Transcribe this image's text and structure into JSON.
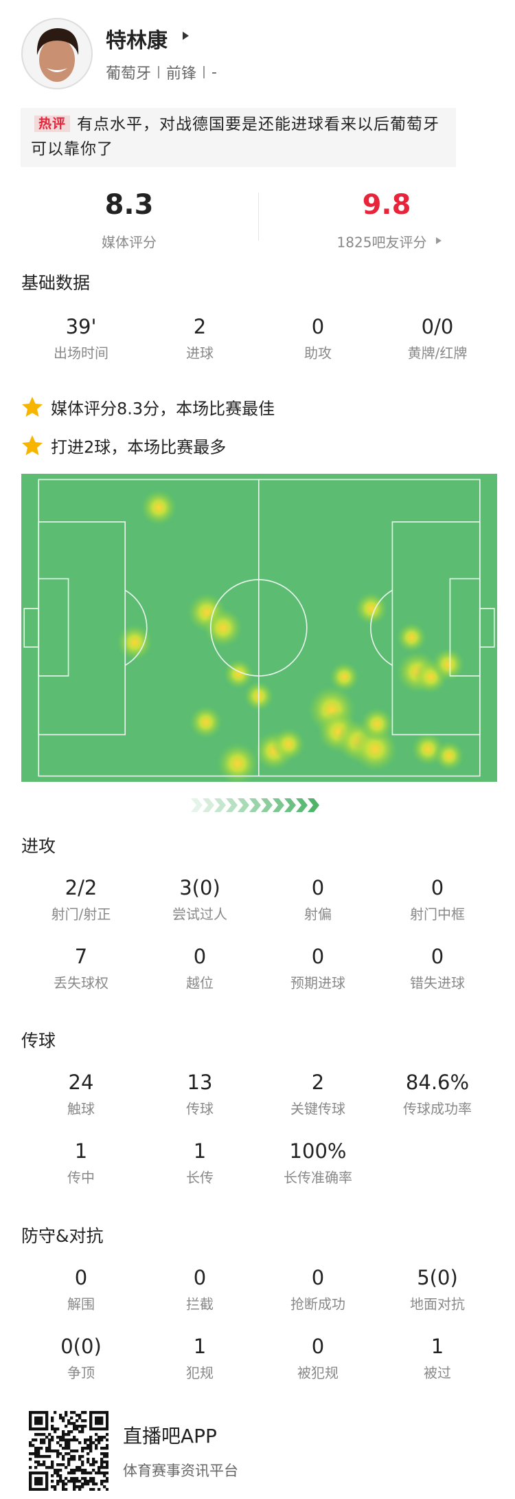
{
  "player": {
    "name": "特林康",
    "country": "葡萄牙",
    "position": "前锋",
    "extra": "-"
  },
  "hot_comment": {
    "tag": "热评",
    "text": "有点水平，对战德国要是还能进球看来以后葡萄牙可以靠你了"
  },
  "ratings": [
    {
      "value": "8.3",
      "label": "媒体评分"
    },
    {
      "value": "9.8",
      "label": "1825吧友评分"
    }
  ],
  "basic": {
    "title": "基础数据",
    "items": [
      {
        "value": "39'",
        "label": "出场时间"
      },
      {
        "value": "2",
        "label": "进球"
      },
      {
        "value": "0",
        "label": "助攻"
      },
      {
        "value": "0/0",
        "label": "黄牌/红牌"
      }
    ]
  },
  "highlights": [
    "媒体评分8.3分，本场比赛最佳",
    "打进2球，本场比赛最多"
  ],
  "sections": [
    {
      "title": "进攻",
      "items": [
        {
          "value": "2/2",
          "label": "射门/射正"
        },
        {
          "value": "3(0)",
          "label": "尝试过人"
        },
        {
          "value": "0",
          "label": "射偏"
        },
        {
          "value": "0",
          "label": "射门中框"
        },
        {
          "value": "7",
          "label": "丢失球权"
        },
        {
          "value": "0",
          "label": "越位"
        },
        {
          "value": "0",
          "label": "预期进球"
        },
        {
          "value": "0",
          "label": "错失进球"
        }
      ]
    },
    {
      "title": "传球",
      "items": [
        {
          "value": "24",
          "label": "触球"
        },
        {
          "value": "13",
          "label": "传球"
        },
        {
          "value": "2",
          "label": "关键传球"
        },
        {
          "value": "84.6%",
          "label": "传球成功率"
        },
        {
          "value": "1",
          "label": "传中"
        },
        {
          "value": "1",
          "label": "长传"
        },
        {
          "value": "100%",
          "label": "长传准确率"
        }
      ]
    },
    {
      "title": "防守&对抗",
      "items": [
        {
          "value": "0",
          "label": "解围"
        },
        {
          "value": "0",
          "label": "拦截"
        },
        {
          "value": "0",
          "label": "抢断成功"
        },
        {
          "value": "5(0)",
          "label": "地面对抗"
        },
        {
          "value": "0(0)",
          "label": "争顶"
        },
        {
          "value": "1",
          "label": "犯规"
        },
        {
          "value": "0",
          "label": "被犯规"
        },
        {
          "value": "1",
          "label": "被过"
        }
      ]
    }
  ],
  "footer": {
    "app": "直播吧APP",
    "slogan": "体育赛事资讯平台"
  }
}
